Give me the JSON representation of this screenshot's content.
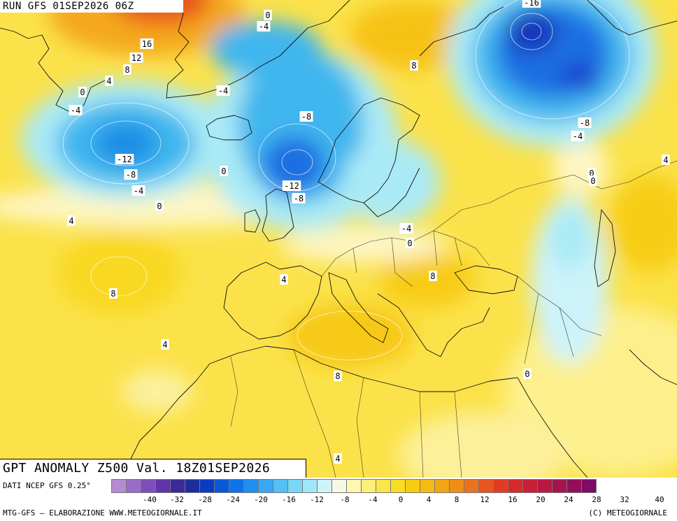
{
  "header": {
    "run_label": "RUN GFS 01SEP2026 06Z",
    "title": "GPT ANOMALY Z500 Val. 18Z01SEP2026"
  },
  "legend": {
    "data_source": "DATI NCEP GFS 0.25°",
    "credit": "MTG-GFS — ELABORAZIONE WWW.METEOGIORNALE.IT",
    "copyright": "(C) METEOGIORNALE",
    "tick_labels": [
      "-40",
      "-32",
      "-28",
      "-24",
      "-20",
      "-16",
      "-12",
      "-8",
      "-4",
      "0",
      "4",
      "8",
      "12",
      "16",
      "20",
      "24",
      "28",
      "32",
      "40"
    ],
    "colors": [
      "#b48cd2",
      "#9a6cc8",
      "#7e4fb8",
      "#5f35a8",
      "#3c2a96",
      "#1f2c9e",
      "#0b3cc0",
      "#0a58d8",
      "#0f74e8",
      "#1f8ff0",
      "#39a8f4",
      "#55c0f6",
      "#78d6f8",
      "#a0e6f8",
      "#cdf3fa",
      "#f6f8e6",
      "#fdf7b0",
      "#fdf07a",
      "#fbe64a",
      "#f9dc24",
      "#f7cd0f",
      "#f5bb10",
      "#f2a614",
      "#ef8d18",
      "#eb721c",
      "#e6561f",
      "#e03c22",
      "#d62928",
      "#c91e36",
      "#b81842",
      "#a5144c",
      "#921058",
      "#7d0c62"
    ]
  },
  "map": {
    "colors": {
      "land": "#f6e100",
      "ocean_warm": "#fde55a",
      "warm_core": "#f4a81c",
      "hot_core": "#e8521c",
      "neutral": "#fdf6c4",
      "cold_light": "#aaeaf6",
      "cold": "#3fb6ee",
      "cold_deep": "#1c6ee2",
      "cold_core": "#1230b8",
      "coast": "#111111"
    },
    "contour_labels": [
      {
        "text": "0"
      },
      {
        "text": "-4"
      },
      {
        "text": "16"
      },
      {
        "text": "12"
      },
      {
        "text": "8"
      },
      {
        "text": "4"
      },
      {
        "text": "0"
      },
      {
        "text": "-4"
      },
      {
        "text": "-4"
      },
      {
        "text": "-8"
      },
      {
        "text": "-12"
      },
      {
        "text": "-8"
      },
      {
        "text": "-4"
      },
      {
        "text": "0"
      },
      {
        "text": "0"
      },
      {
        "text": "-12"
      },
      {
        "text": "-8"
      },
      {
        "text": "8"
      },
      {
        "text": "-16"
      },
      {
        "text": "-8"
      },
      {
        "text": "-4"
      },
      {
        "text": "0"
      },
      {
        "text": "0"
      },
      {
        "text": "4"
      },
      {
        "text": "4"
      },
      {
        "text": "8"
      },
      {
        "text": "4"
      },
      {
        "text": "4"
      },
      {
        "text": "-4"
      },
      {
        "text": "0"
      },
      {
        "text": "8"
      },
      {
        "text": "8"
      },
      {
        "text": "0"
      },
      {
        "text": "4"
      }
    ]
  }
}
